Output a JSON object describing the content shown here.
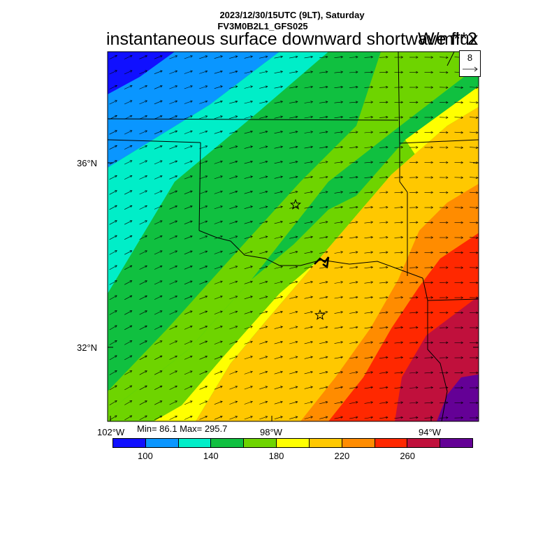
{
  "header": {
    "date_line": "2023/12/30/15UTC (9LT), Saturday",
    "model_line": "FV3M0B2L1_GFS025",
    "title": "instantaneous surface downward shortwave flux",
    "units": "W/m**2"
  },
  "stats": {
    "minmax": "Min= 86.1 Max= 295.7"
  },
  "reference_vector": {
    "value": "8"
  },
  "axes": {
    "lat_labels": [
      "36°N",
      "32°N"
    ],
    "lon_labels": [
      "102°W",
      "98°W",
      "94°W"
    ]
  },
  "colorbar": {
    "colors": [
      "#1010ff",
      "#0a96ff",
      "#00eec8",
      "#10c040",
      "#6ed400",
      "#ffff00",
      "#ffc800",
      "#ff8c00",
      "#ff2800",
      "#c0103c",
      "#640096"
    ],
    "labels": [
      "100",
      "140",
      "180",
      "220",
      "260"
    ]
  },
  "markers": [
    {
      "name": "star-marker",
      "symbol": "star"
    },
    {
      "name": "star-marker",
      "symbol": "star"
    }
  ]
}
